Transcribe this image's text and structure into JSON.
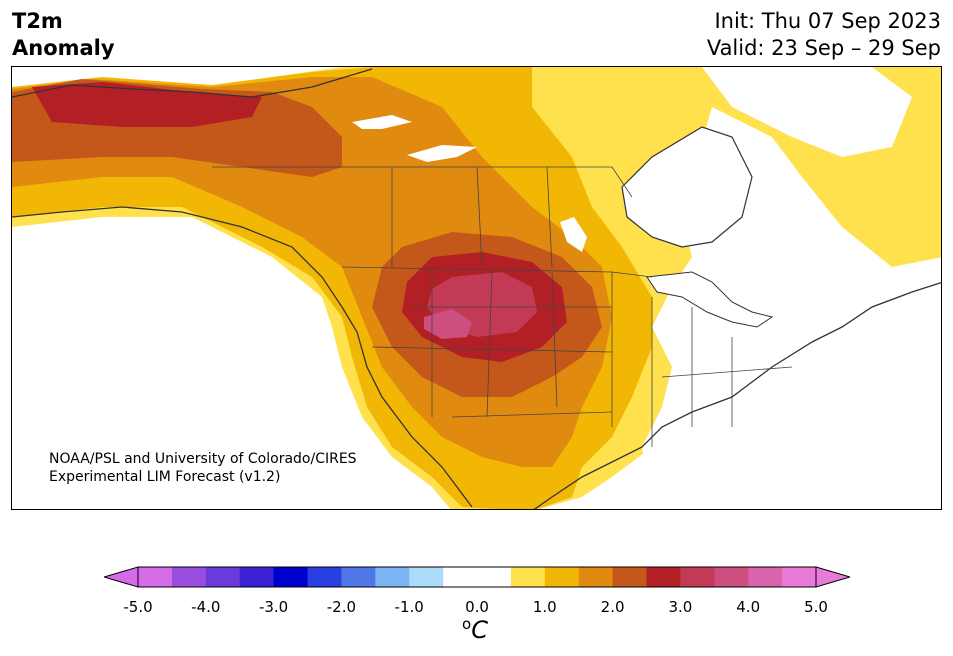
{
  "header": {
    "title_line1": "T2m",
    "title_line2": "Anomaly",
    "init_label": "Init: Thu 07 Sep 2023",
    "valid_label": "Valid: 23 Sep – 29 Sep"
  },
  "map": {
    "region": "North America",
    "credit_line1": "NOAA/PSL and University of Colorado/CIRES",
    "credit_line2": "Experimental LIM Forecast (v1.2)"
  },
  "colorbar": {
    "ticks": [
      "-5.0",
      "-4.0",
      "-3.0",
      "-2.0",
      "-1.0",
      "0.0",
      "1.0",
      "2.0",
      "3.0",
      "4.0",
      "5.0"
    ],
    "unit_base": "C",
    "unit_super": "o",
    "colors": [
      "#d66be8",
      "#9a4ee0",
      "#6a3bdc",
      "#3b22d2",
      "#0000cc",
      "#2a3fe0",
      "#4f77e8",
      "#7ab4f2",
      "#aadcfa",
      "#ffffff",
      "#ffffff",
      "#ffe14d",
      "#f2b705",
      "#e08a0f",
      "#c4581a",
      "#b22026",
      "#c23a55",
      "#cc4f80",
      "#d864ad",
      "#e87ad8"
    ],
    "extend_low": "#d66be8",
    "extend_high": "#e87ad8"
  }
}
